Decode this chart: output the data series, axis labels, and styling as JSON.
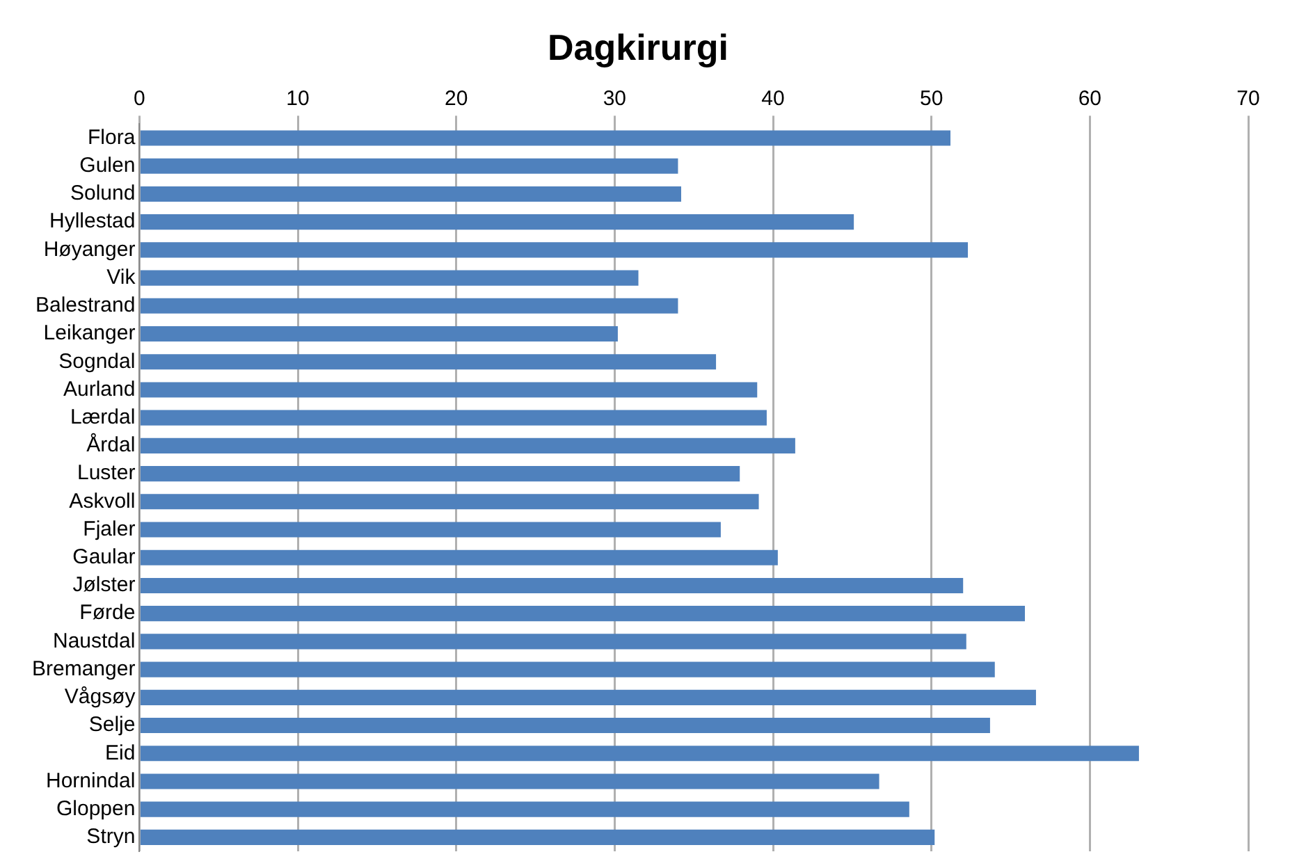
{
  "chart_data": {
    "type": "bar",
    "orientation": "horizontal",
    "title": "Dagkirurgi",
    "categories": [
      "Flora",
      "Gulen",
      "Solund",
      "Hyllestad",
      "Høyanger",
      "Vik",
      "Balestrand",
      "Leikanger",
      "Sogndal",
      "Aurland",
      "Lærdal",
      "Årdal",
      "Luster",
      "Askvoll",
      "Fjaler",
      "Gaular",
      "Jølster",
      "Førde",
      "Naustdal",
      "Bremanger",
      "Vågsøy",
      "Selje",
      "Eid",
      "Hornindal",
      "Gloppen",
      "Stryn"
    ],
    "values": [
      51.2,
      34.0,
      34.2,
      45.1,
      52.3,
      31.5,
      34.0,
      30.2,
      36.4,
      39.0,
      39.6,
      41.4,
      37.9,
      39.1,
      36.7,
      40.3,
      52.0,
      55.9,
      52.2,
      54.0,
      56.6,
      53.7,
      63.1,
      46.7,
      48.6,
      50.2
    ],
    "color": "#4f81bd",
    "xlim": [
      0,
      70
    ],
    "xticks": [
      0,
      10,
      20,
      30,
      40,
      50,
      60,
      70
    ],
    "grid": "x",
    "legend": false
  }
}
